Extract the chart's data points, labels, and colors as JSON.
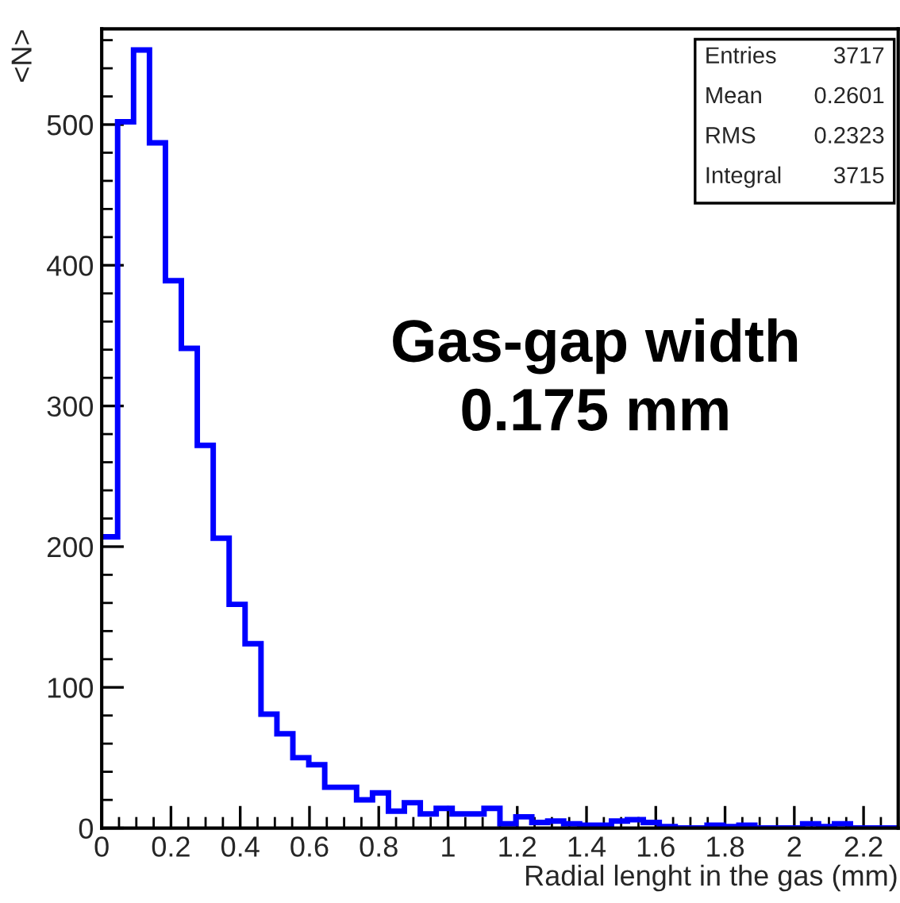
{
  "chart_data": {
    "type": "histogram",
    "xlabel": "Radial lenght in the gas (mm)",
    "ylabel": "<N>",
    "color": "#0000ff",
    "bins": [
      0,
      0.046,
      0.092,
      0.138,
      0.184,
      0.23,
      0.276,
      0.322,
      0.368,
      0.414,
      0.46,
      0.506,
      0.552,
      0.598,
      0.644,
      0.69,
      0.736,
      0.782,
      0.828,
      0.874,
      0.92,
      0.966,
      1.012,
      1.058,
      1.104,
      1.15,
      1.196,
      1.242,
      1.288,
      1.334,
      1.38,
      1.426,
      1.472,
      1.518,
      1.564,
      1.61,
      1.656,
      1.702,
      1.748,
      1.794,
      1.84,
      1.886,
      1.932,
      1.978,
      2.024,
      2.07,
      2.116,
      2.162,
      2.208,
      2.254,
      2.3
    ],
    "values": [
      207,
      502,
      553,
      487,
      389,
      341,
      272,
      206,
      159,
      131,
      81,
      67,
      50,
      45,
      29,
      29,
      20,
      25,
      12,
      18,
      10,
      14,
      10,
      10,
      14,
      3,
      8,
      4,
      5,
      3,
      2,
      2,
      5,
      6,
      4,
      1,
      0,
      0,
      2,
      1,
      2,
      0,
      0,
      0,
      3,
      1,
      3,
      0,
      0,
      0
    ],
    "xlim": [
      0,
      2.3
    ],
    "xticks": [
      0,
      0.2,
      0.4,
      0.6,
      0.8,
      1,
      1.2,
      1.4,
      1.6,
      1.8,
      2,
      2.2
    ],
    "ylim": [
      0,
      568
    ],
    "yticks": [
      0,
      100,
      200,
      300,
      400,
      500
    ],
    "annotations": [
      "Gas-gap width\n0.175 mm",
      "Entries 3717",
      "Mean 0.2601",
      "RMS 0.2323",
      "Integral 3715"
    ]
  }
}
